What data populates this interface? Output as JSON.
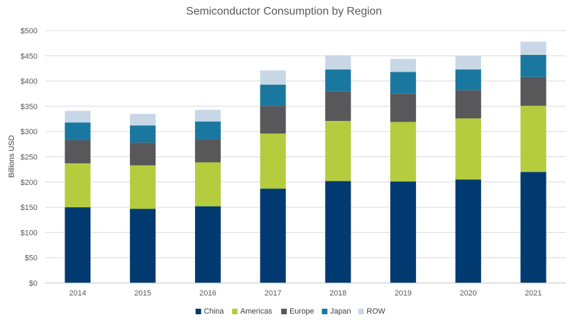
{
  "chart_data": {
    "type": "bar",
    "stacked": true,
    "title": "Semiconductor Consumption by Region",
    "xlabel": "",
    "ylabel": "Billions USD",
    "ylim": [
      0,
      500
    ],
    "yticks": [
      "$0",
      "$50",
      "$100",
      "$150",
      "$200",
      "$250",
      "$300",
      "$350",
      "$400",
      "$450",
      "$500"
    ],
    "ytick_values": [
      0,
      50,
      100,
      150,
      200,
      250,
      300,
      350,
      400,
      450,
      500
    ],
    "grid": true,
    "legend_position": "bottom",
    "categories": [
      "2014",
      "2015",
      "2016",
      "2017",
      "2018",
      "2019",
      "2020",
      "2021"
    ],
    "series": [
      {
        "name": "China",
        "color": "#003a70",
        "values": [
          150,
          147,
          152,
          187,
          202,
          201,
          205,
          220
        ]
      },
      {
        "name": "Americas",
        "color": "#b5cc3e",
        "values": [
          87,
          86,
          87,
          109,
          119,
          118,
          121,
          131
        ]
      },
      {
        "name": "Europe",
        "color": "#58585a",
        "values": [
          46,
          45,
          46,
          55,
          58,
          56,
          56,
          57
        ]
      },
      {
        "name": "Japan",
        "color": "#1a78a0",
        "values": [
          35,
          34,
          35,
          42,
          44,
          43,
          41,
          44
        ]
      },
      {
        "name": "ROW",
        "color": "#c8d7e6",
        "values": [
          23,
          23,
          23,
          28,
          28,
          26,
          26,
          26
        ]
      }
    ]
  }
}
